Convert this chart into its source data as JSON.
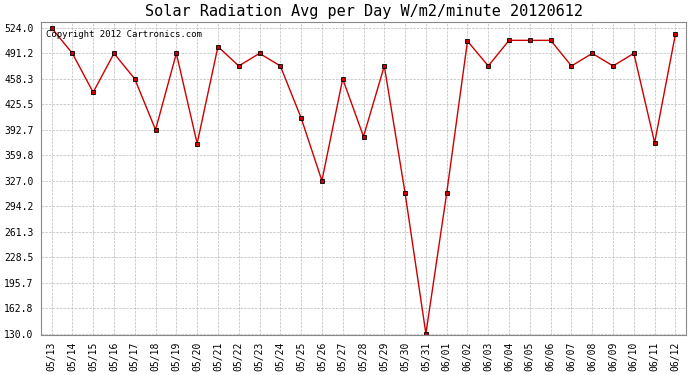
{
  "title": "Solar Radiation Avg per Day W/m2/minute 20120612",
  "copyright_text": "Copyright 2012 Cartronics.com",
  "labels": [
    "05/13",
    "05/14",
    "05/15",
    "05/16",
    "05/17",
    "05/18",
    "05/19",
    "05/20",
    "05/21",
    "05/22",
    "05/23",
    "05/24",
    "05/25",
    "05/26",
    "05/27",
    "05/28",
    "05/29",
    "05/30",
    "05/31",
    "06/01",
    "06/02",
    "06/03",
    "06/04",
    "06/05",
    "06/06",
    "06/07",
    "06/08",
    "06/09",
    "06/10",
    "06/11",
    "06/12"
  ],
  "values": [
    524.0,
    491.2,
    441.0,
    491.2,
    458.3,
    392.7,
    491.2,
    375.0,
    500.0,
    475.0,
    491.2,
    475.0,
    408.0,
    327.0,
    458.3,
    384.0,
    475.0,
    311.0,
    130.0,
    311.0,
    507.0,
    475.0,
    508.0,
    508.0,
    508.0,
    475.0,
    491.2,
    475.0,
    491.2,
    376.0,
    516.0
  ],
  "y_min": 130.0,
  "y_max": 524.0,
  "y_ticks": [
    130.0,
    162.8,
    195.7,
    228.5,
    261.3,
    294.2,
    327.0,
    359.8,
    392.7,
    425.5,
    458.3,
    491.2,
    524.0
  ],
  "y_tick_labels": [
    "130.0",
    "162.8",
    "195.7",
    "228.5",
    "261.3",
    "294.2",
    "327.0",
    "359.8",
    "392.7",
    "425.5",
    "458.3",
    "491.2",
    "524.0"
  ],
  "line_color": "#cc0000",
  "marker_color": "#cc0000",
  "marker_size": 3,
  "background_color": "#ffffff",
  "grid_color": "#bbbbbb",
  "title_fontsize": 11,
  "tick_fontsize": 7,
  "copyright_fontsize": 6.5
}
